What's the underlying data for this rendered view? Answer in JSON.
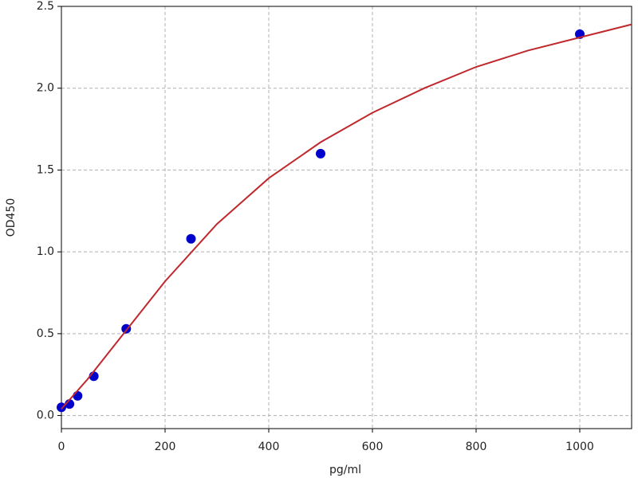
{
  "chart_data": {
    "type": "scatter",
    "x_label": "pg/ml",
    "y_label": "OD450",
    "xlim": [
      0,
      1100
    ],
    "ylim": [
      -0.08,
      2.5
    ],
    "xticks": [
      0,
      200,
      400,
      600,
      800,
      1000
    ],
    "yticks": [
      {
        "value": 0,
        "label": "0.0"
      },
      0.5,
      {
        "value": 1,
        "label": "1.0"
      },
      1.5,
      {
        "value": 2,
        "label": "2.0"
      },
      2.5
    ],
    "grid": true,
    "series": [
      {
        "type": "scatter",
        "color": "#0000cc",
        "x": [
          0,
          15.6,
          31.25,
          62.5,
          125,
          250,
          500,
          1000
        ],
        "values": [
          0.05,
          0.07,
          0.12,
          0.24,
          0.53,
          1.08,
          1.6,
          2.33
        ]
      },
      {
        "type": "line",
        "color": "#c0282d",
        "x": [
          0,
          50,
          100,
          200,
          300,
          400,
          500,
          600,
          700,
          800,
          900,
          1000,
          1100
        ],
        "values": [
          0.04,
          0.22,
          0.42,
          0.82,
          1.17,
          1.45,
          1.67,
          1.85,
          2.0,
          2.13,
          2.23,
          2.31,
          2.39
        ]
      }
    ]
  }
}
